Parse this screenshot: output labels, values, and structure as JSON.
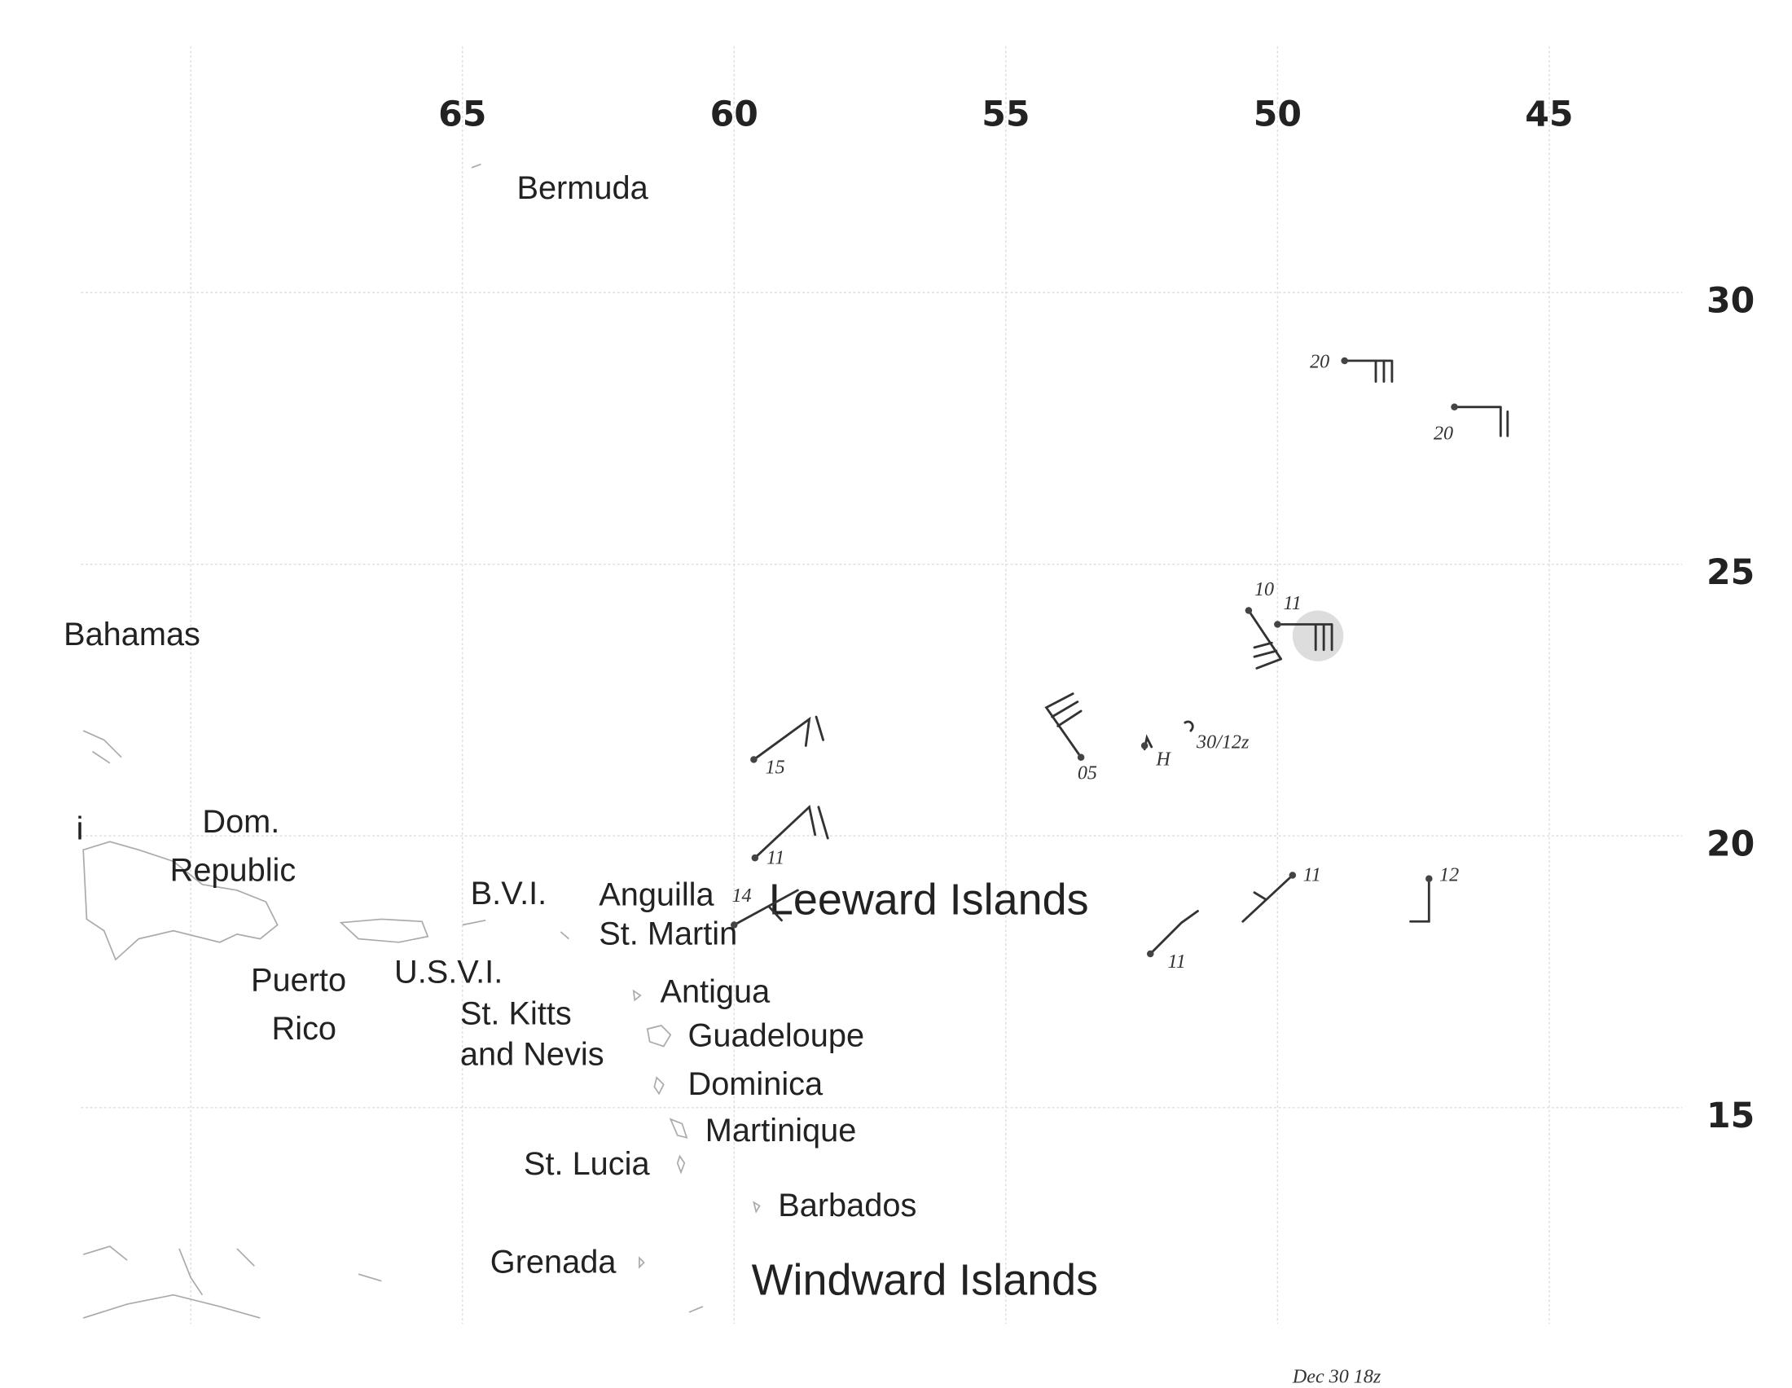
{
  "map": {
    "lon_ticks": [
      65,
      60,
      55,
      50,
      45
    ],
    "lat_ticks": [
      30,
      25,
      20,
      15
    ],
    "places": [
      "Bermuda",
      "Bahamas",
      "i",
      "Dom.",
      "Republic",
      "B.V.I.",
      "Anguilla",
      "St. Martin",
      "Leeward Islands",
      "Puerto",
      "Rico",
      "U.S.V.I.",
      "St. Kitts",
      "and Nevis",
      "Antigua",
      "Guadeloupe",
      "Dominica",
      "Martinique",
      "St. Lucia",
      "Barbados",
      "Grenada",
      "Windward Islands"
    ],
    "stations": [
      "20",
      "20",
      "10",
      "11",
      "15",
      "05",
      "H",
      "30/12z",
      "11",
      "14",
      "11",
      "12",
      "11"
    ],
    "date": "Dec 30 18z"
  }
}
